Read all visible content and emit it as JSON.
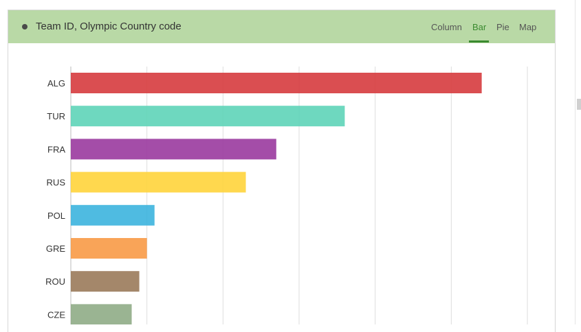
{
  "header": {
    "title": "Team ID, Olympic Country code",
    "tabs": [
      {
        "label": "Column",
        "active": false
      },
      {
        "label": "Bar",
        "active": true
      },
      {
        "label": "Pie",
        "active": false
      },
      {
        "label": "Map",
        "active": false
      }
    ]
  },
  "colors": {
    "header_bg": "#b9d9a6",
    "active_tab": "#3a8a2f"
  },
  "chart_data": {
    "type": "bar",
    "orientation": "horizontal",
    "title": "Team ID, Olympic Country code",
    "xlabel": "",
    "ylabel": "",
    "xlim": [
      0,
      6
    ],
    "grid": true,
    "categories": [
      "ALG",
      "TUR",
      "FRA",
      "RUS",
      "POL",
      "GRE",
      "ROU",
      "CZE"
    ],
    "values": [
      5.4,
      3.6,
      2.7,
      2.3,
      1.1,
      1.0,
      0.9,
      0.8
    ],
    "colors": [
      "#d63b3e",
      "#5ed4b8",
      "#9a3a9e",
      "#ffd43b",
      "#3cb4de",
      "#f89a46",
      "#9a7a5a",
      "#8fac86"
    ]
  }
}
